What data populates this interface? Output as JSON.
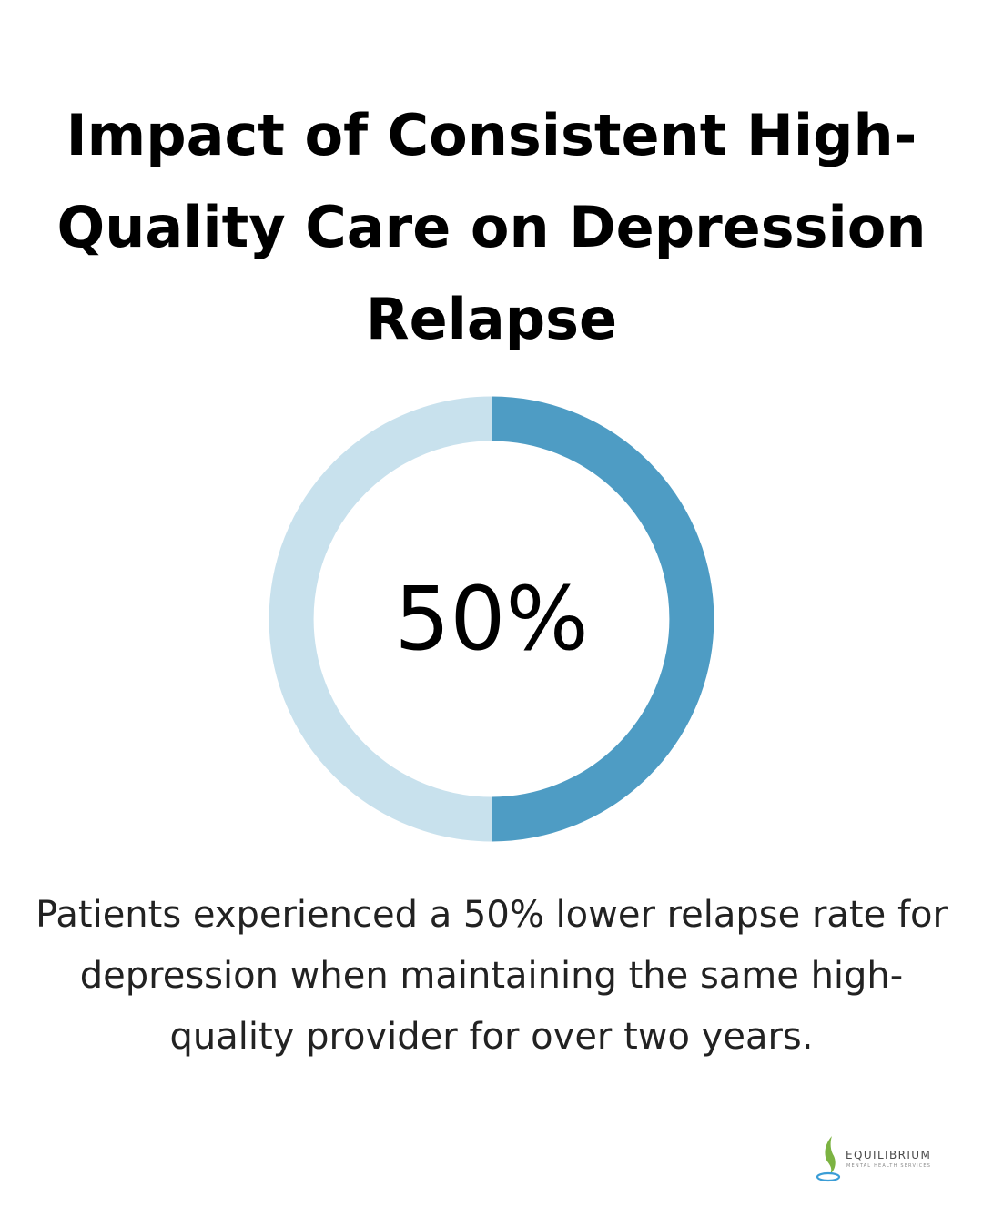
{
  "chart_data": {
    "type": "pie",
    "title": "Impact of Consistent High-Quality Care on Depression Relapse",
    "values": [
      50,
      50
    ],
    "center_label": "50%",
    "caption": "Patients experienced a 50% lower relapse rate for depression when maintaining the same high-quality provider for over two years.",
    "colors": {
      "highlight": "#4e9cc4",
      "track": "#c8e1ed"
    }
  },
  "logo": {
    "name": "EQUILIBRIUM",
    "subtitle": "MENTAL HEALTH SERVICES",
    "colors": {
      "leaf": "#7cb342",
      "water": "#3b9dd6"
    }
  }
}
